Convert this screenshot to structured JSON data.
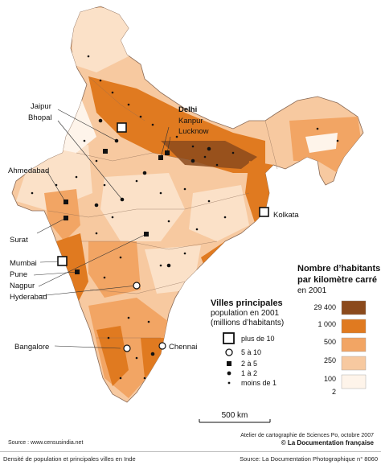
{
  "map": {
    "source_note": "Source : www.censusindia.net",
    "scale_label": "500 km",
    "atelier_credit": "Atelier de cartographie de Sciences Po, octobre 2007",
    "publisher_credit": "© La Documentation française",
    "cities": [
      {
        "name": "Delhi",
        "class": "plus de 10"
      },
      {
        "name": "Jaipur",
        "class": "1 à 2"
      },
      {
        "name": "Bhopal",
        "class": "1 à 2"
      },
      {
        "name": "Kanpur",
        "class": "2 à 5"
      },
      {
        "name": "Lucknow",
        "class": "2 à 5"
      },
      {
        "name": "Ahmedabad",
        "class": "2 à 5"
      },
      {
        "name": "Kolkata",
        "class": "plus de 10"
      },
      {
        "name": "Surat",
        "class": "2 à 5"
      },
      {
        "name": "Mumbai",
        "class": "plus de 10"
      },
      {
        "name": "Pune",
        "class": "2 à 5"
      },
      {
        "name": "Nagpur",
        "class": "2 à 5"
      },
      {
        "name": "Hyderabad",
        "class": "5 à 10"
      },
      {
        "name": "Bangalore",
        "class": "5 à 10"
      },
      {
        "name": "Chennai",
        "class": "5 à 10"
      }
    ]
  },
  "density_legend": {
    "title_line1": "Nombre d’habitants",
    "title_line2": "par kilomètre carré",
    "title_line3": "en 2001",
    "breaks": [
      "29 400",
      "1 000",
      "500",
      "250",
      "100",
      "2"
    ],
    "colors": [
      "#8b4a1c",
      "#e07a20",
      "#f2a564",
      "#f7c9a0",
      "#fbe1c8",
      "#fef4ea"
    ]
  },
  "cities_legend": {
    "title": "Villes principales",
    "sub1": "population en 2001",
    "sub2": "(millions d’habitants)",
    "items": [
      "plus de 10",
      "5 à 10",
      "2 à 5",
      "1 à 2",
      "moins de 1"
    ]
  },
  "footer": {
    "left": "Densité de population et principales villes en Inde",
    "right": "Source: La Documentation Photographique n° 8060"
  }
}
